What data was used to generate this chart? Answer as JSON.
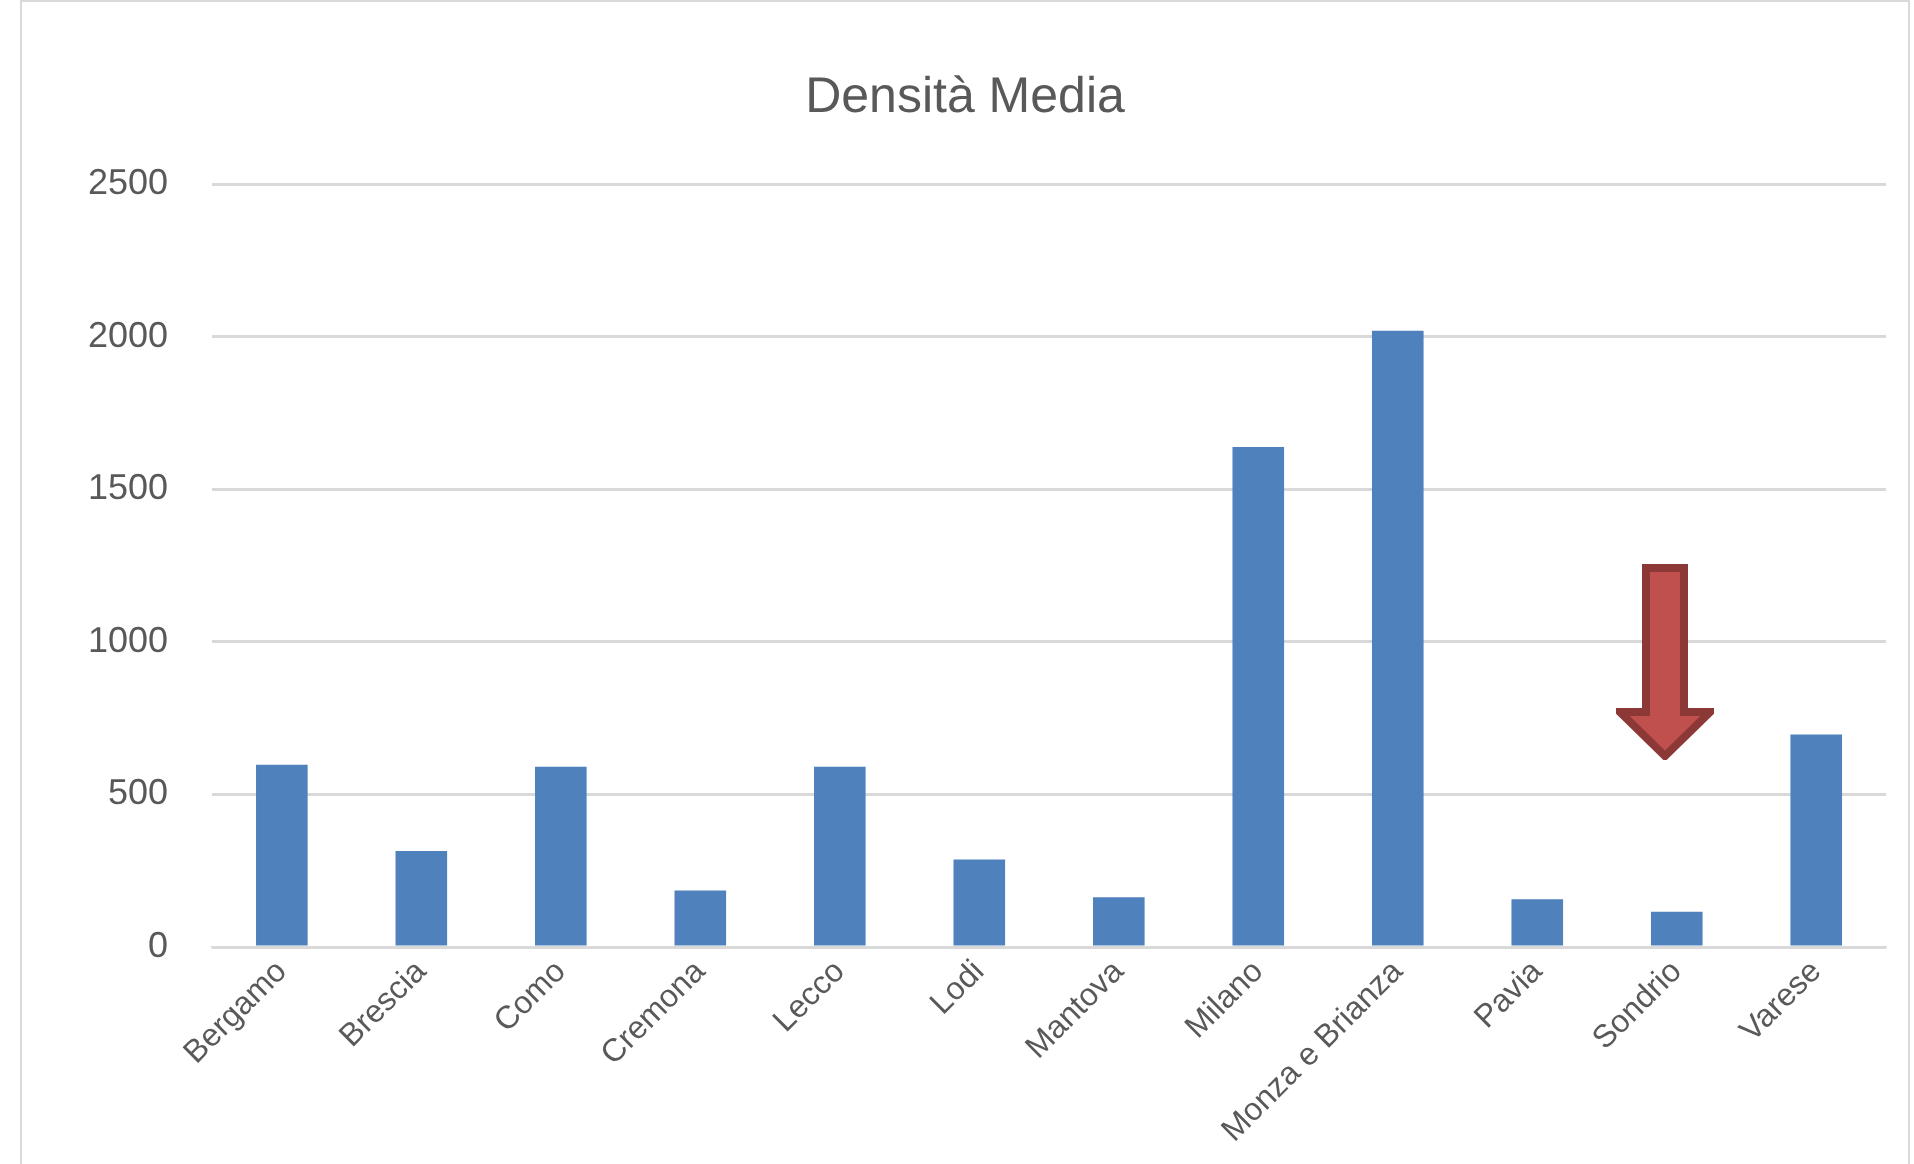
{
  "chart_data": {
    "type": "bar",
    "title": "Densità Media",
    "categories": [
      "Bergamo",
      "Brescia",
      "Como",
      "Cremona",
      "Lecco",
      "Lodi",
      "Mantova",
      "Milano",
      "Monza e Brianza",
      "Pavia",
      "Sondrio",
      "Varese"
    ],
    "values": [
      597,
      315,
      591,
      185,
      591,
      287,
      163,
      1638,
      2019,
      157,
      116,
      696
    ],
    "color": "#4f81bd",
    "ylim": [
      0,
      2500
    ],
    "yticks": [
      0,
      500,
      1000,
      1500,
      2000,
      2500
    ],
    "grid": "y",
    "legend": false
  }
}
